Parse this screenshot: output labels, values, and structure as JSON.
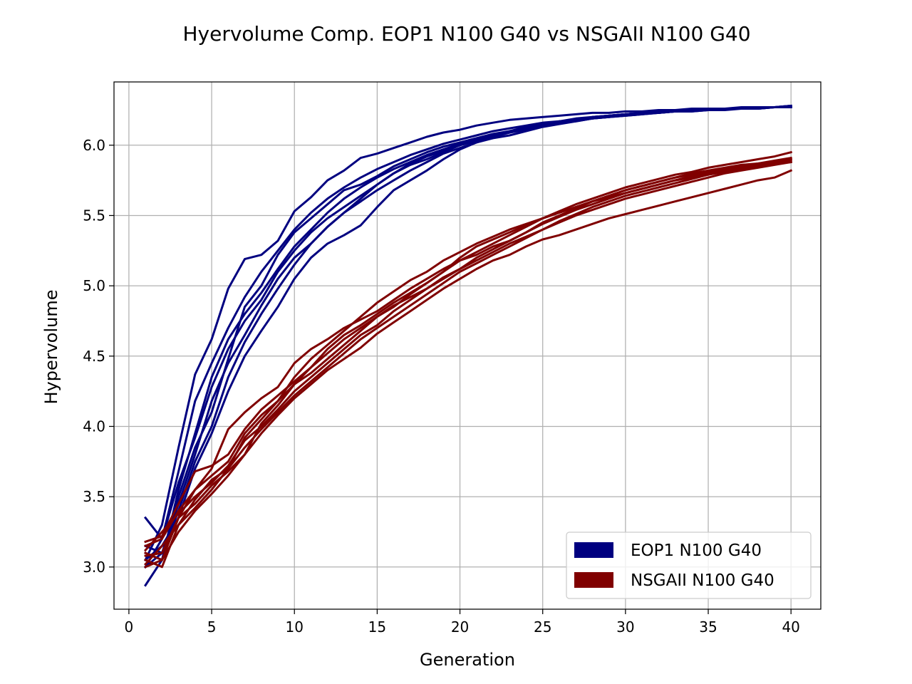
{
  "chart_data": {
    "type": "line",
    "title": "Hyervolume Comp. EOP1 N100 G40 vs NSGAII N100 G40",
    "xlabel": "Generation",
    "ylabel": "Hypervolume",
    "xlim": [
      -0.9,
      41.8
    ],
    "ylim": [
      2.7,
      6.45
    ],
    "xticks": [
      0,
      5,
      10,
      15,
      20,
      25,
      30,
      35,
      40
    ],
    "yticks": [
      3.0,
      3.5,
      4.0,
      4.5,
      5.0,
      5.5,
      6.0
    ],
    "ytick_labels": [
      "3.0",
      "3.5",
      "4.0",
      "4.5",
      "5.0",
      "5.5",
      "6.0"
    ],
    "grid": true,
    "legend_position": "lower-right",
    "colors": {
      "EOP1 N100 G40": "#000080",
      "NSGAII N100 G40": "#800000"
    },
    "legend": [
      {
        "label": "EOP1 N100 G40",
        "color": "#000080"
      },
      {
        "label": "NSGAII N100 G40",
        "color": "#800000"
      }
    ],
    "x": [
      1,
      2,
      3,
      4,
      5,
      6,
      7,
      8,
      9,
      10,
      11,
      12,
      13,
      14,
      15,
      16,
      17,
      18,
      19,
      20,
      21,
      22,
      23,
      24,
      25,
      26,
      27,
      28,
      29,
      30,
      31,
      32,
      33,
      34,
      35,
      36,
      37,
      38,
      39,
      40
    ],
    "series": [
      {
        "group": "EOP1 N100 G40",
        "values": [
          3.35,
          3.2,
          3.68,
          4.18,
          4.45,
          4.7,
          4.92,
          5.1,
          5.25,
          5.4,
          5.52,
          5.62,
          5.7,
          5.77,
          5.83,
          5.88,
          5.93,
          5.97,
          6.01,
          6.04,
          6.07,
          6.1,
          6.12,
          6.14,
          6.16,
          6.17,
          6.19,
          6.2,
          6.21,
          6.22,
          6.23,
          6.24,
          6.24,
          6.25,
          6.25,
          6.26,
          6.26,
          6.27,
          6.27,
          6.28
        ]
      },
      {
        "group": "EOP1 N100 G40",
        "values": [
          3.05,
          3.3,
          3.85,
          4.37,
          4.62,
          4.98,
          5.19,
          5.22,
          5.32,
          5.53,
          5.63,
          5.75,
          5.82,
          5.91,
          5.94,
          5.98,
          6.02,
          6.06,
          6.09,
          6.11,
          6.14,
          6.16,
          6.18,
          6.19,
          6.2,
          6.21,
          6.22,
          6.23,
          6.23,
          6.24,
          6.24,
          6.25,
          6.25,
          6.26,
          6.26,
          6.26,
          6.27,
          6.27,
          6.27,
          6.28
        ]
      },
      {
        "group": "EOP1 N100 G40",
        "values": [
          2.87,
          3.05,
          3.5,
          3.85,
          4.1,
          4.48,
          4.85,
          5.0,
          5.22,
          5.38,
          5.48,
          5.58,
          5.68,
          5.72,
          5.78,
          5.85,
          5.9,
          5.95,
          5.99,
          6.02,
          6.05,
          6.08,
          6.1,
          6.13,
          6.15,
          6.17,
          6.18,
          6.19,
          6.21,
          6.22,
          6.23,
          6.24,
          6.24,
          6.25,
          6.25,
          6.26,
          6.26,
          6.27,
          6.27,
          6.27
        ]
      },
      {
        "group": "EOP1 N100 G40",
        "values": [
          3.0,
          3.1,
          3.4,
          3.75,
          4.0,
          4.35,
          4.6,
          4.8,
          4.98,
          5.15,
          5.3,
          5.42,
          5.52,
          5.6,
          5.68,
          5.75,
          5.82,
          5.88,
          5.94,
          5.98,
          6.02,
          6.06,
          6.09,
          6.12,
          6.14,
          6.16,
          6.18,
          6.2,
          6.21,
          6.22,
          6.23,
          6.24,
          6.24,
          6.25,
          6.25,
          6.26,
          6.26,
          6.27,
          6.27,
          6.28
        ]
      },
      {
        "group": "EOP1 N100 G40",
        "values": [
          3.1,
          3.05,
          3.55,
          3.95,
          4.35,
          4.62,
          4.8,
          4.95,
          5.12,
          5.28,
          5.4,
          5.52,
          5.62,
          5.7,
          5.77,
          5.83,
          5.88,
          5.93,
          5.97,
          6.01,
          6.04,
          6.07,
          6.1,
          6.12,
          6.15,
          6.17,
          6.18,
          6.2,
          6.21,
          6.22,
          6.23,
          6.23,
          6.24,
          6.25,
          6.25,
          6.26,
          6.26,
          6.26,
          6.27,
          6.27
        ]
      },
      {
        "group": "EOP1 N100 G40",
        "values": [
          3.15,
          3.1,
          3.45,
          3.8,
          4.18,
          4.45,
          4.65,
          4.86,
          5.05,
          5.2,
          5.3,
          5.42,
          5.52,
          5.62,
          5.72,
          5.8,
          5.86,
          5.9,
          5.95,
          6.0,
          6.03,
          6.06,
          6.09,
          6.11,
          6.14,
          6.16,
          6.18,
          6.19,
          6.2,
          6.22,
          6.23,
          6.23,
          6.24,
          6.25,
          6.25,
          6.26,
          6.26,
          6.27,
          6.27,
          6.27
        ]
      },
      {
        "group": "EOP1 N100 G40",
        "values": [
          3.0,
          3.2,
          3.6,
          3.92,
          4.28,
          4.55,
          4.75,
          4.9,
          5.1,
          5.25,
          5.38,
          5.48,
          5.56,
          5.64,
          5.72,
          5.8,
          5.87,
          5.92,
          5.96,
          6.0,
          6.04,
          6.07,
          6.09,
          6.12,
          6.14,
          6.16,
          6.17,
          6.19,
          6.2,
          6.21,
          6.22,
          6.23,
          6.24,
          6.24,
          6.25,
          6.26,
          6.26,
          6.26,
          6.27,
          6.27
        ]
      },
      {
        "group": "EOP1 N100 G40",
        "values": [
          3.05,
          3.15,
          3.35,
          3.7,
          3.95,
          4.25,
          4.5,
          4.68,
          4.85,
          5.05,
          5.2,
          5.3,
          5.36,
          5.43,
          5.56,
          5.68,
          5.75,
          5.82,
          5.9,
          5.97,
          6.02,
          6.05,
          6.07,
          6.1,
          6.13,
          6.15,
          6.17,
          6.19,
          6.2,
          6.21,
          6.22,
          6.23,
          6.24,
          6.24,
          6.25,
          6.25,
          6.26,
          6.26,
          6.27,
          6.27
        ]
      },
      {
        "group": "NSGAII N100 G40",
        "values": [
          3.18,
          3.22,
          3.45,
          3.68,
          3.72,
          3.8,
          3.98,
          4.12,
          4.22,
          4.32,
          4.42,
          4.52,
          4.62,
          4.7,
          4.78,
          4.85,
          4.94,
          5.02,
          5.1,
          5.18,
          5.24,
          5.3,
          5.36,
          5.42,
          5.48,
          5.53,
          5.58,
          5.62,
          5.66,
          5.7,
          5.73,
          5.76,
          5.79,
          5.81,
          5.84,
          5.86,
          5.88,
          5.9,
          5.92,
          5.95
        ]
      },
      {
        "group": "NSGAII N100 G40",
        "values": [
          3.1,
          3.05,
          3.35,
          3.55,
          3.7,
          3.98,
          4.1,
          4.2,
          4.28,
          4.45,
          4.55,
          4.62,
          4.7,
          4.76,
          4.82,
          4.9,
          4.98,
          5.05,
          5.12,
          5.18,
          5.22,
          5.28,
          5.32,
          5.38,
          5.45,
          5.5,
          5.55,
          5.6,
          5.64,
          5.68,
          5.71,
          5.74,
          5.77,
          5.8,
          5.82,
          5.84,
          5.86,
          5.87,
          5.89,
          5.91
        ]
      },
      {
        "group": "NSGAII N100 G40",
        "values": [
          3.05,
          3.0,
          3.3,
          3.48,
          3.62,
          3.7,
          3.92,
          4.05,
          4.18,
          4.3,
          4.42,
          4.55,
          4.65,
          4.72,
          4.8,
          4.88,
          4.95,
          5.02,
          5.1,
          5.2,
          5.28,
          5.33,
          5.38,
          5.43,
          5.48,
          5.52,
          5.56,
          5.6,
          5.64,
          5.68,
          5.71,
          5.74,
          5.77,
          5.79,
          5.81,
          5.83,
          5.85,
          5.87,
          5.88,
          5.9
        ]
      },
      {
        "group": "NSGAII N100 G40",
        "values": [
          3.15,
          3.2,
          3.4,
          3.55,
          3.65,
          3.75,
          3.95,
          4.08,
          4.18,
          4.35,
          4.48,
          4.58,
          4.68,
          4.78,
          4.88,
          4.96,
          5.04,
          5.1,
          5.18,
          5.24,
          5.3,
          5.35,
          5.4,
          5.44,
          5.48,
          5.52,
          5.56,
          5.6,
          5.63,
          5.66,
          5.69,
          5.72,
          5.75,
          5.77,
          5.8,
          5.82,
          5.84,
          5.86,
          5.87,
          5.89
        ]
      },
      {
        "group": "NSGAII N100 G40",
        "values": [
          3.12,
          3.25,
          3.38,
          3.5,
          3.6,
          3.72,
          3.9,
          4.0,
          4.12,
          4.25,
          4.35,
          4.45,
          4.55,
          4.65,
          4.72,
          4.82,
          4.9,
          4.98,
          5.06,
          5.12,
          5.18,
          5.24,
          5.3,
          5.35,
          5.4,
          5.45,
          5.5,
          5.54,
          5.58,
          5.62,
          5.65,
          5.68,
          5.71,
          5.74,
          5.77,
          5.8,
          5.82,
          5.84,
          5.86,
          5.88
        ]
      },
      {
        "group": "NSGAII N100 G40",
        "values": [
          3.02,
          3.15,
          3.3,
          3.42,
          3.55,
          3.7,
          3.85,
          3.98,
          4.1,
          4.22,
          4.32,
          4.42,
          4.52,
          4.62,
          4.7,
          4.78,
          4.86,
          4.94,
          5.02,
          5.1,
          5.16,
          5.22,
          5.28,
          5.34,
          5.4,
          5.46,
          5.51,
          5.56,
          5.6,
          5.64,
          5.67,
          5.7,
          5.73,
          5.76,
          5.79,
          5.81,
          5.83,
          5.85,
          5.87,
          5.88
        ]
      },
      {
        "group": "NSGAII N100 G40",
        "values": [
          3.08,
          3.1,
          3.35,
          3.45,
          3.58,
          3.68,
          3.8,
          4.02,
          4.15,
          4.3,
          4.38,
          4.48,
          4.58,
          4.68,
          4.78,
          4.86,
          4.92,
          4.98,
          5.05,
          5.12,
          5.2,
          5.26,
          5.32,
          5.38,
          5.44,
          5.49,
          5.54,
          5.58,
          5.62,
          5.66,
          5.69,
          5.72,
          5.75,
          5.78,
          5.8,
          5.82,
          5.84,
          5.86,
          5.88,
          5.9
        ]
      },
      {
        "group": "NSGAII N100 G40",
        "values": [
          3.0,
          3.05,
          3.25,
          3.4,
          3.52,
          3.65,
          3.8,
          3.95,
          4.08,
          4.2,
          4.3,
          4.4,
          4.48,
          4.56,
          4.66,
          4.74,
          4.82,
          4.9,
          4.98,
          5.05,
          5.12,
          5.18,
          5.22,
          5.28,
          5.33,
          5.36,
          5.4,
          5.44,
          5.48,
          5.51,
          5.54,
          5.57,
          5.6,
          5.63,
          5.66,
          5.69,
          5.72,
          5.75,
          5.77,
          5.82
        ]
      }
    ]
  }
}
